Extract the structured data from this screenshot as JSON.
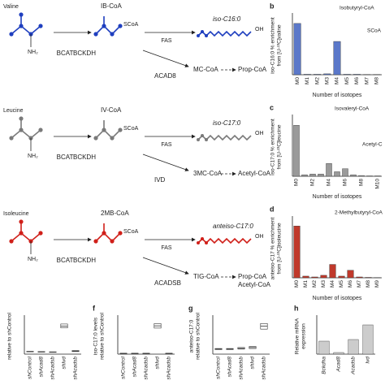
{
  "pathways": [
    {
      "amino_acid": "Valine",
      "amine": "NH₂",
      "enzymes": [
        "BCAT",
        "BCKDH"
      ],
      "intermediate": "IB-CoA",
      "thioester": "SCoA",
      "product": "iso-C16:0",
      "acid": "OH",
      "fas": "FAS",
      "dehydrogenase": "ACAD8",
      "branch": [
        "MC-CoA",
        "Prop-CoA"
      ],
      "color": "#1f3fbf"
    },
    {
      "amino_acid": "Leucine",
      "amine": "NH₂",
      "enzymes": [
        "BCAT",
        "BCKDH"
      ],
      "intermediate": "IV-CoA",
      "thioester": "SCoA",
      "product": "iso-C17:0",
      "acid": "OH",
      "fas": "FAS",
      "dehydrogenase": "IVD",
      "branch": [
        "3MC-CoA",
        "Acetyl-CoA"
      ],
      "color": "#7a7a7a"
    },
    {
      "amino_acid": "Isoleucine",
      "amine": "NH₂",
      "enzymes": [
        "BCAT",
        "BCKDH"
      ],
      "intermediate": "2MB-CoA",
      "thioester": "SCoA",
      "product": "anteiso-C17:0",
      "acid": "OH",
      "fas": "FAS",
      "dehydrogenase": "ACADSB",
      "branch": [
        "TIG-CoA",
        "Prop-CoA",
        "Acetyl-CoA"
      ],
      "color": "#d0201a"
    }
  ],
  "chart_data": [
    {
      "type": "bar",
      "panel": "b",
      "ylabel": [
        "iso-C16:0 % enrichment",
        "from [U-¹³C]valine"
      ],
      "xlabel": "Number of isotopes",
      "annotations": [
        "Isobutyryl-CoA",
        "SCoA"
      ],
      "categories": [
        "M0",
        "M1",
        "M2",
        "M3",
        "M4",
        "M5",
        "M6",
        "M7",
        "M8"
      ],
      "values": [
        57,
        0.5,
        0.5,
        1,
        37,
        0.5,
        0.5,
        0.3,
        0.3
      ],
      "color": "#5b78c9",
      "ylim": [
        0,
        65
      ]
    },
    {
      "type": "bar",
      "panel": "c",
      "ylabel": [
        "iso-C17:0 % enrichment",
        "from [U-¹³C]leucine"
      ],
      "xlabel": "Number of isotopes",
      "annotations": [
        "Isovaleryl-CoA",
        "Acetyl-C"
      ],
      "categories": [
        "M0",
        null,
        "M2",
        null,
        "M4",
        null,
        "M6",
        null,
        "M8",
        null,
        "M10"
      ],
      "values": [
        68,
        2,
        3,
        3,
        17,
        6,
        10,
        2,
        1,
        0.5,
        0.5
      ],
      "color": "#9a9a9a",
      "ylim": [
        0,
        78
      ]
    },
    {
      "type": "bar",
      "panel": "d",
      "ylabel": [
        "anteiso-C17 % enrichment",
        "from [U-¹³C]isoleucine"
      ],
      "xlabel": "Number of isotopes",
      "annotations": [
        "2-Methylbutyryl-CoA"
      ],
      "categories": [
        "M0",
        "M1",
        "M2",
        "M3",
        "M4",
        "M5",
        "M6",
        "M7",
        "M8",
        "M9"
      ],
      "values": [
        62,
        2,
        1,
        3,
        16,
        2,
        9,
        1,
        0.5,
        0.3
      ],
      "color": "#c0392b",
      "ylim": [
        0,
        70
      ]
    },
    {
      "type": "box",
      "ylabel": [
        "relative to shControl"
      ],
      "categories": [
        "shControl",
        "shAcad8",
        "shAcadsb",
        "shIvd",
        "shAcadsb"
      ],
      "q1": [
        0.9,
        0.8,
        0.7,
        10.3,
        1.0
      ],
      "median": [
        1,
        0.9,
        0.8,
        11,
        1.2
      ],
      "q3": [
        1.1,
        1.0,
        0.9,
        11.8,
        1.4
      ],
      "ylim": [
        0,
        14
      ]
    },
    {
      "type": "box",
      "panel": "f",
      "ylabel": [
        "iso-C17:0 levels",
        "relative to shControl"
      ],
      "categories": [
        "shControl",
        "shAcad8",
        "shAcadsb",
        "shIvd",
        "shAcadsb"
      ],
      "q1": [
        0.8,
        0.8,
        0.8,
        35,
        0.8
      ],
      "median": [
        1,
        1,
        1,
        38,
        1
      ],
      "q3": [
        1.2,
        1.2,
        1.2,
        41,
        1.2
      ],
      "ylim": [
        0,
        48
      ]
    },
    {
      "type": "box",
      "panel": "g",
      "ylabel": [
        "anteiso-C17:0",
        "relative to shControl"
      ],
      "categories": [
        "shControl",
        "shAcad8",
        "shAcadsb",
        "shIvd",
        "shAcadsb"
      ],
      "q1": [
        0.9,
        0.9,
        1.0,
        1.1,
        4.9
      ],
      "median": [
        1,
        1,
        1.1,
        1.3,
        5.5
      ],
      "q3": [
        1.1,
        1.1,
        1.3,
        1.5,
        6.0
      ],
      "ylim": [
        0,
        7
      ]
    },
    {
      "type": "bar",
      "panel": "h",
      "ylabel": [
        "Relative mRNA",
        "expression"
      ],
      "categories": [
        "Bckdha",
        "Acad8",
        "Acadsb",
        "Ivd"
      ],
      "values": [
        0.8,
        0.1,
        0.9,
        1.8
      ],
      "color": "#cccccc",
      "ylim": [
        0,
        2.2
      ]
    }
  ]
}
